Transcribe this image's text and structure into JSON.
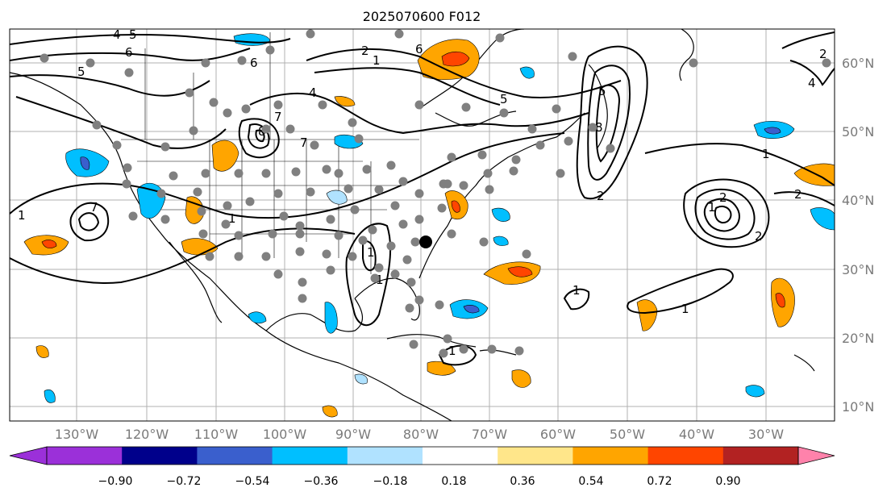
{
  "title": "2025070600 F012",
  "longitude_labels": [
    "130°W",
    "120°W",
    "110°W",
    "100°W",
    "90°W",
    "80°W",
    "70°W",
    "60°W",
    "50°W",
    "40°W",
    "30°W"
  ],
  "latitude_labels": [
    "60°N",
    "50°N",
    "40°N",
    "30°N",
    "20°N",
    "10°N"
  ],
  "colorbar": {
    "tick_labels": [
      "−0.90",
      "−0.72",
      "−0.54",
      "−0.36",
      "−0.18",
      "0.18",
      "0.36",
      "0.54",
      "0.72",
      "0.90"
    ],
    "colors": [
      "#9b30d9",
      "#00008b",
      "#3a5fcd",
      "#00bfff",
      "#b0e2ff",
      "#ffffff",
      "#ffe68a",
      "#ffa500",
      "#ff4500",
      "#b22222",
      "#ff82ab"
    ]
  },
  "contour_labels": [
    "5",
    "4",
    "2",
    "1",
    "6",
    "6",
    "4",
    "5",
    "8",
    "7",
    "7",
    "6",
    "5",
    "1",
    "1",
    "1",
    "2",
    "1",
    "8",
    "5",
    "2",
    "1",
    "1",
    "2",
    "7",
    "1",
    "1",
    "1",
    "2",
    "2",
    "4"
  ],
  "colors": {
    "station_dot": "#808080",
    "highlight_dot": "#000000",
    "grid": "#b0b0b0",
    "coastline": "#000000",
    "contour": "#000000"
  }
}
